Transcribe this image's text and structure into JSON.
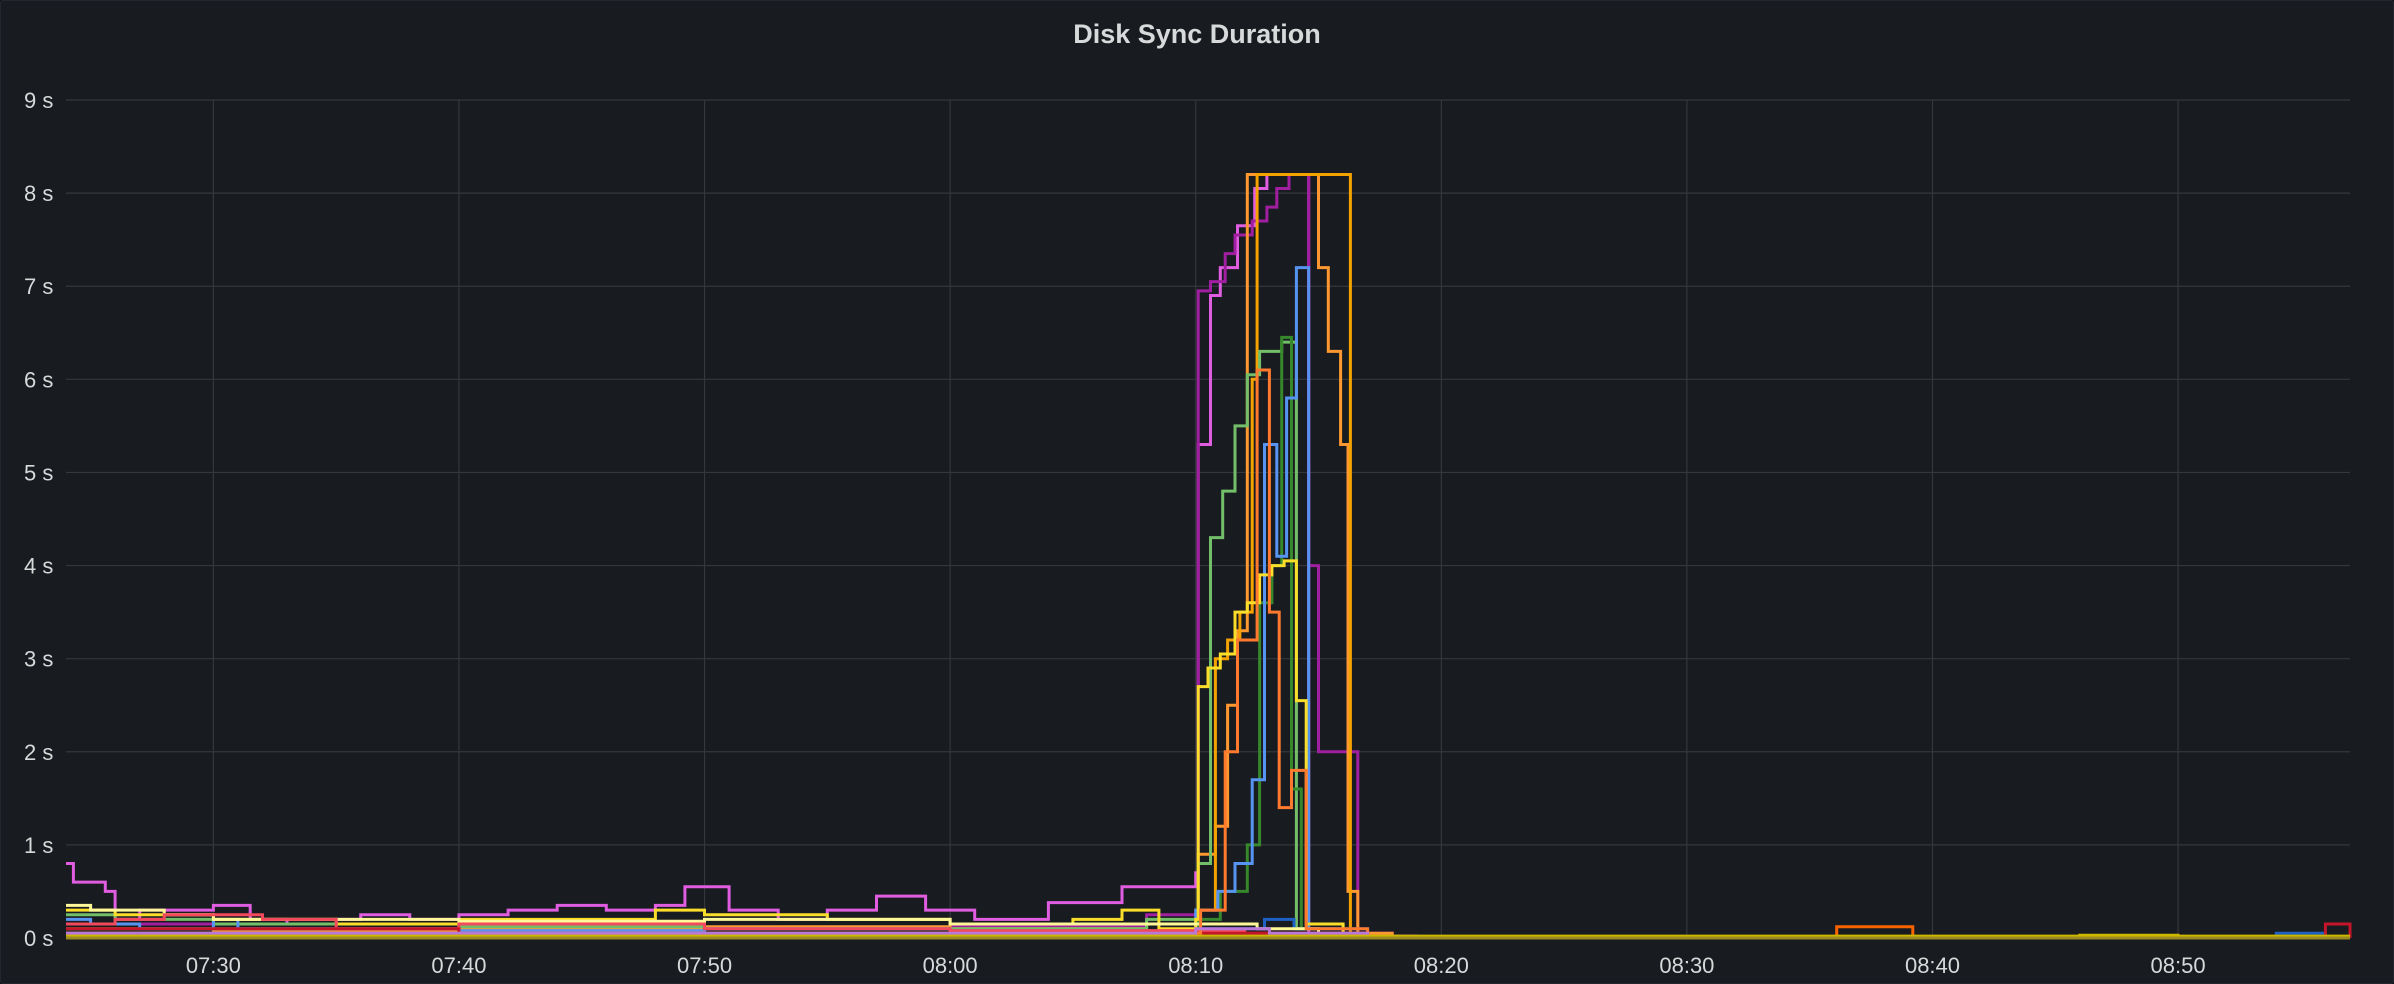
{
  "panel": {
    "title": "Disk Sync Duration"
  },
  "chart_data": {
    "type": "line",
    "interpolation": "step",
    "title": "Disk Sync Duration",
    "xlabel": "",
    "ylabel": "",
    "y_unit": "s",
    "ylim": [
      0,
      9
    ],
    "xlim": [
      "07:24",
      "08:57"
    ],
    "grid": true,
    "legend": "none",
    "background": "#181b1f",
    "grid_color": "#34373c",
    "y_ticks": [
      0,
      1,
      2,
      3,
      4,
      5,
      6,
      7,
      8,
      9
    ],
    "y_tick_labels": [
      "0 s",
      "1 s",
      "2 s",
      "3 s",
      "4 s",
      "5 s",
      "6 s",
      "7 s",
      "8 s",
      "9 s"
    ],
    "x_ticks": [
      "07:30",
      "07:40",
      "07:50",
      "08:00",
      "08:10",
      "08:20",
      "08:30",
      "08:40",
      "08:50"
    ],
    "series": [
      {
        "color": "#e05ce0",
        "points": [
          [
            "07:24",
            0.8
          ],
          [
            "07:24.3",
            0.6
          ],
          [
            "07:25.6",
            0.5
          ],
          [
            "07:26",
            0.2
          ],
          [
            "07:27",
            0.3
          ],
          [
            "07:30",
            0.35
          ],
          [
            "07:31.5",
            0.2
          ],
          [
            "07:33",
            0.15
          ],
          [
            "07:35",
            0.2
          ],
          [
            "07:36",
            0.25
          ],
          [
            "07:38",
            0.2
          ],
          [
            "07:40",
            0.25
          ],
          [
            "07:42",
            0.3
          ],
          [
            "07:44",
            0.35
          ],
          [
            "07:46",
            0.3
          ],
          [
            "07:48",
            0.35
          ],
          [
            "07:49.2",
            0.55
          ],
          [
            "07:51",
            0.3
          ],
          [
            "07:53",
            0.2
          ],
          [
            "07:55",
            0.3
          ],
          [
            "07:57",
            0.45
          ],
          [
            "07:59",
            0.3
          ],
          [
            "08:01",
            0.2
          ],
          [
            "08:04",
            0.38
          ],
          [
            "08:07",
            0.55
          ],
          [
            "08:10",
            0.7
          ],
          [
            "08:10.1",
            5.3
          ],
          [
            "08:10.6",
            6.9
          ],
          [
            "08:11",
            7.2
          ],
          [
            "08:11.7",
            7.65
          ],
          [
            "08:12.4",
            8.05
          ],
          [
            "08:12.9",
            8.2
          ],
          [
            "08:14.6",
            0.05
          ],
          [
            "08:15",
            0.02
          ],
          [
            "08:19",
            0
          ]
        ]
      },
      {
        "color": "#a01ea0",
        "points": [
          [
            "07:24",
            0.15
          ],
          [
            "07:30",
            0.1
          ],
          [
            "07:40",
            0.12
          ],
          [
            "07:50",
            0.1
          ],
          [
            "08:00",
            0.12
          ],
          [
            "08:08",
            0.25
          ],
          [
            "08:10.1",
            6.95
          ],
          [
            "08:10.6",
            7.05
          ],
          [
            "08:11.2",
            7.35
          ],
          [
            "08:11.6",
            7.55
          ],
          [
            "08:12.3",
            7.7
          ],
          [
            "08:12.9",
            7.85
          ],
          [
            "08:13.3",
            8.05
          ],
          [
            "08:13.8",
            8.2
          ],
          [
            "08:14.6",
            4.0
          ],
          [
            "08:15",
            2.0
          ],
          [
            "08:16.6",
            0.05
          ],
          [
            "08:18",
            0
          ]
        ]
      },
      {
        "color": "#ff9830",
        "points": [
          [
            "07:24",
            0.1
          ],
          [
            "07:30",
            0.08
          ],
          [
            "07:40",
            0.1
          ],
          [
            "07:50",
            0.12
          ],
          [
            "08:00",
            0.1
          ],
          [
            "08:08",
            0.15
          ],
          [
            "08:10.1",
            0.9
          ],
          [
            "08:10.8",
            1.2
          ],
          [
            "08:11.3",
            2.5
          ],
          [
            "08:11.7",
            3.3
          ],
          [
            "08:12.1",
            8.2
          ],
          [
            "08:15",
            7.2
          ],
          [
            "08:15.4",
            6.3
          ],
          [
            "08:15.9",
            5.3
          ],
          [
            "08:16.2",
            0.5
          ],
          [
            "08:16.6",
            0.05
          ],
          [
            "08:18",
            0
          ]
        ]
      },
      {
        "color": "#f4a200",
        "points": [
          [
            "07:24",
            0.05
          ],
          [
            "07:40",
            0.05
          ],
          [
            "08:00",
            0.05
          ],
          [
            "08:10.1",
            0.3
          ],
          [
            "08:10.8",
            3.0
          ],
          [
            "08:11.3",
            3.2
          ],
          [
            "08:11.8",
            3.5
          ],
          [
            "08:12.3",
            6.0
          ],
          [
            "08:12.5",
            8.2
          ],
          [
            "08:16.3",
            0.05
          ],
          [
            "08:17",
            0
          ]
        ]
      },
      {
        "color": "#73bf69",
        "points": [
          [
            "07:24",
            0.25
          ],
          [
            "07:26",
            0.2
          ],
          [
            "07:30",
            0.15
          ],
          [
            "07:40",
            0.12
          ],
          [
            "07:50",
            0.1
          ],
          [
            "08:00",
            0.1
          ],
          [
            "08:08",
            0.2
          ],
          [
            "08:10.1",
            0.8
          ],
          [
            "08:10.6",
            4.3
          ],
          [
            "08:11.1",
            4.8
          ],
          [
            "08:11.6",
            5.5
          ],
          [
            "08:12.1",
            6.05
          ],
          [
            "08:12.6",
            6.3
          ],
          [
            "08:13.5",
            6.4
          ],
          [
            "08:14.1",
            0.1
          ],
          [
            "08:15",
            0.02
          ],
          [
            "08:17",
            0
          ]
        ]
      },
      {
        "color": "#37872d",
        "points": [
          [
            "07:24",
            0.1
          ],
          [
            "07:40",
            0.05
          ],
          [
            "08:00",
            0.05
          ],
          [
            "08:10.1",
            0.2
          ],
          [
            "08:11",
            0.5
          ],
          [
            "08:12.1",
            1.0
          ],
          [
            "08:12.6",
            3.6
          ],
          [
            "08:13.1",
            4.0
          ],
          [
            "08:13.5",
            6.45
          ],
          [
            "08:13.9",
            1.6
          ],
          [
            "08:14.3",
            0.1
          ],
          [
            "08:15",
            0.02
          ],
          [
            "08:17",
            0
          ]
        ]
      },
      {
        "color": "#5794f2",
        "points": [
          [
            "07:24",
            0.2
          ],
          [
            "07:25",
            0.15
          ],
          [
            "07:27",
            0.1
          ],
          [
            "07:30",
            0.2
          ],
          [
            "07:31",
            0.1
          ],
          [
            "07:40",
            0.08
          ],
          [
            "07:50",
            0.1
          ],
          [
            "08:00",
            0.08
          ],
          [
            "08:10",
            0.3
          ],
          [
            "08:10.9",
            0.5
          ],
          [
            "08:11.6",
            0.8
          ],
          [
            "08:12.3",
            1.7
          ],
          [
            "08:12.8",
            5.3
          ],
          [
            "08:13.3",
            4.1
          ],
          [
            "08:13.7",
            5.8
          ],
          [
            "08:14.1",
            7.2
          ],
          [
            "08:14.6",
            0.1
          ],
          [
            "08:16",
            0.02
          ],
          [
            "08:17",
            0
          ]
        ]
      },
      {
        "color": "#1f60c4",
        "points": [
          [
            "07:24",
            0.05
          ],
          [
            "07:40",
            0.05
          ],
          [
            "08:00",
            0.05
          ],
          [
            "08:10",
            0.1
          ],
          [
            "08:12.8",
            0.2
          ],
          [
            "08:14",
            0.1
          ],
          [
            "08:17",
            0
          ],
          [
            "08:54",
            0.05
          ],
          [
            "08:55.5",
            0.05
          ],
          [
            "08:56",
            0
          ]
        ]
      },
      {
        "color": "#fade2a",
        "points": [
          [
            "07:24",
            0.3
          ],
          [
            "07:26",
            0.25
          ],
          [
            "07:30",
            0.2
          ],
          [
            "07:35",
            0.15
          ],
          [
            "07:40",
            0.2
          ],
          [
            "07:45",
            0.2
          ],
          [
            "07:48",
            0.3
          ],
          [
            "07:50",
            0.25
          ],
          [
            "07:55",
            0.2
          ],
          [
            "08:00",
            0.15
          ],
          [
            "08:05",
            0.2
          ],
          [
            "08:07",
            0.3
          ],
          [
            "08:08.5",
            0.1
          ],
          [
            "08:10",
            0.2
          ],
          [
            "08:10.1",
            2.7
          ],
          [
            "08:10.5",
            2.9
          ],
          [
            "08:11",
            3.05
          ],
          [
            "08:11.6",
            3.5
          ],
          [
            "08:12.1",
            3.6
          ],
          [
            "08:12.6",
            3.9
          ],
          [
            "08:13.1",
            4.0
          ],
          [
            "08:13.6",
            4.05
          ],
          [
            "08:14.1",
            2.55
          ],
          [
            "08:14.5",
            0.15
          ],
          [
            "08:16",
            0.02
          ],
          [
            "08:17",
            0
          ]
        ]
      },
      {
        "color": "#fff899",
        "points": [
          [
            "07:24",
            0.35
          ],
          [
            "07:25",
            0.3
          ],
          [
            "07:28",
            0.25
          ],
          [
            "07:30",
            0.2
          ],
          [
            "07:40",
            0.18
          ],
          [
            "07:50",
            0.2
          ],
          [
            "08:00",
            0.15
          ],
          [
            "08:10",
            0.15
          ],
          [
            "08:12.5",
            0.1
          ],
          [
            "08:15",
            0.05
          ],
          [
            "08:17",
            0
          ]
        ]
      },
      {
        "color": "#f2495c",
        "points": [
          [
            "07:24",
            0.15
          ],
          [
            "07:26",
            0.2
          ],
          [
            "07:28",
            0.25
          ],
          [
            "07:32",
            0.2
          ],
          [
            "07:35",
            0.1
          ],
          [
            "07:40",
            0.15
          ],
          [
            "07:50",
            0.1
          ],
          [
            "08:00",
            0.08
          ],
          [
            "08:10",
            0.08
          ],
          [
            "08:12",
            0.05
          ],
          [
            "08:17",
            0
          ]
        ]
      },
      {
        "color": "#c4162a",
        "points": [
          [
            "07:24",
            0.1
          ],
          [
            "07:40",
            0.05
          ],
          [
            "08:00",
            0.05
          ],
          [
            "08:17",
            0
          ],
          [
            "08:55",
            0.0
          ],
          [
            "08:56",
            0.15
          ],
          [
            "08:57",
            0.0
          ]
        ]
      },
      {
        "color": "#ff7a2e",
        "points": [
          [
            "07:24",
            0.05
          ],
          [
            "07:40",
            0.05
          ],
          [
            "08:00",
            0.05
          ],
          [
            "08:10.2",
            0.3
          ],
          [
            "08:11.2",
            2.0
          ],
          [
            "08:11.7",
            3.2
          ],
          [
            "08:12.5",
            6.1
          ],
          [
            "08:13",
            3.5
          ],
          [
            "08:13.4",
            1.4
          ],
          [
            "08:13.9",
            1.8
          ],
          [
            "08:14.5",
            0.1
          ],
          [
            "08:17",
            0
          ]
        ]
      },
      {
        "color": "#fa6400",
        "points": [
          [
            "07:24",
            0
          ],
          [
            "08:36",
            0
          ],
          [
            "08:36.1",
            0.12
          ],
          [
            "08:39.1",
            0.12
          ],
          [
            "08:39.2",
            0
          ],
          [
            "08:57",
            0
          ]
        ]
      },
      {
        "color": "#b877d9",
        "points": [
          [
            "07:24",
            0.05
          ],
          [
            "07:40",
            0.05
          ],
          [
            "08:00",
            0.05
          ],
          [
            "08:10",
            0.1
          ],
          [
            "08:13",
            0.05
          ],
          [
            "08:17",
            0
          ]
        ]
      },
      {
        "color": "#ccb800",
        "points": [
          [
            "07:24",
            0.02
          ],
          [
            "08:20",
            0.02
          ],
          [
            "08:45",
            0.02
          ],
          [
            "08:46",
            0.03
          ],
          [
            "08:50",
            0.02
          ],
          [
            "08:57",
            0.02
          ]
        ]
      }
    ]
  }
}
